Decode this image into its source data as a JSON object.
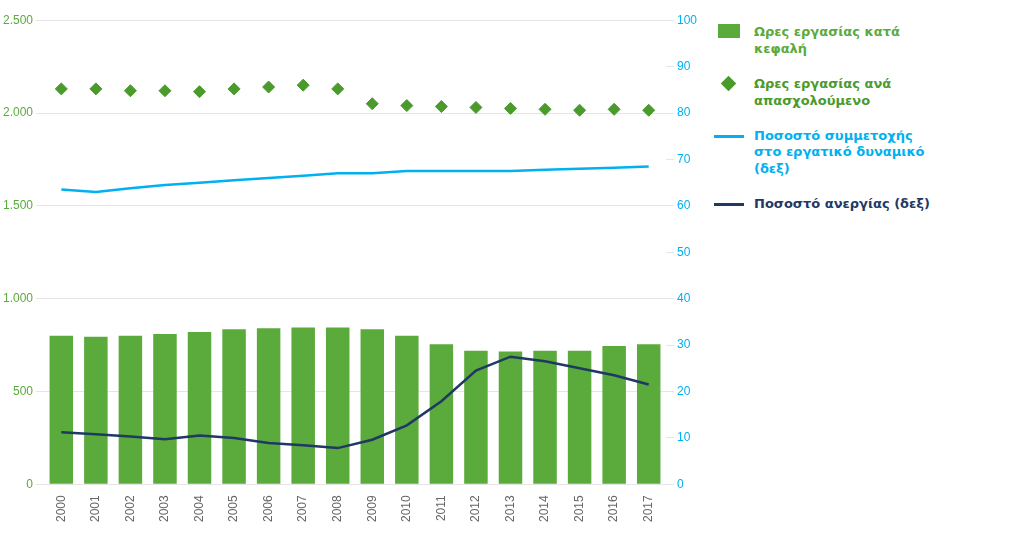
{
  "chart_data": {
    "type": "bar",
    "categories": [
      "2000",
      "2001",
      "2002",
      "2003",
      "2004",
      "2005",
      "2006",
      "2007",
      "2008",
      "2009",
      "2010",
      "2011",
      "2012",
      "2013",
      "2014",
      "2015",
      "2016",
      "2017"
    ],
    "series": [
      {
        "name": "Ωρες εργασίας κατά\nκεφαλή",
        "type": "bar",
        "color": "#5aaa3c",
        "values": [
          800,
          795,
          800,
          810,
          820,
          835,
          840,
          845,
          845,
          835,
          800,
          755,
          720,
          715,
          720,
          720,
          745,
          755
        ]
      },
      {
        "name": "Ωρες εργασίας ανά\nαπασχολούμενο",
        "type": "scatter",
        "marker": "diamond",
        "color": "#4a9a2c",
        "values": [
          2130,
          2130,
          2120,
          2120,
          2115,
          2130,
          2140,
          2150,
          2130,
          2050,
          2040,
          2035,
          2030,
          2025,
          2020,
          2015,
          2020,
          2015
        ]
      },
      {
        "name": "Ποσοστό συμμετοχής\nστο εργατικό δυναμικό\n(δεξ)",
        "type": "line",
        "axis": "y2",
        "color": "#00b0f0",
        "values": [
          63.5,
          63.0,
          63.8,
          64.5,
          65.0,
          65.5,
          66.0,
          66.5,
          67.0,
          67.0,
          67.5,
          67.5,
          67.5,
          67.5,
          67.8,
          68.0,
          68.2,
          68.5
        ]
      },
      {
        "name": "Ποσοστό ανεργίας (δεξ)",
        "type": "line",
        "axis": "y2",
        "color": "#1f3864",
        "values": [
          11.2,
          10.8,
          10.3,
          9.7,
          10.5,
          10.0,
          8.9,
          8.4,
          7.8,
          9.6,
          12.7,
          17.9,
          24.5,
          27.5,
          26.5,
          25.0,
          23.5,
          21.5
        ]
      }
    ],
    "ylim": [
      0,
      2500
    ],
    "yticks": [
      0,
      500,
      {
        "value": 1000,
        "label": "1.000"
      },
      {
        "value": 1500,
        "label": "1.500"
      },
      {
        "value": 2000,
        "label": "2.000"
      },
      {
        "value": 2500,
        "label": "2.500"
      }
    ],
    "y2lim": [
      0,
      100
    ],
    "y2ticks": [
      0,
      10,
      20,
      30,
      40,
      50,
      60,
      70,
      80,
      90,
      100
    ],
    "grid": true,
    "legend": "right"
  }
}
